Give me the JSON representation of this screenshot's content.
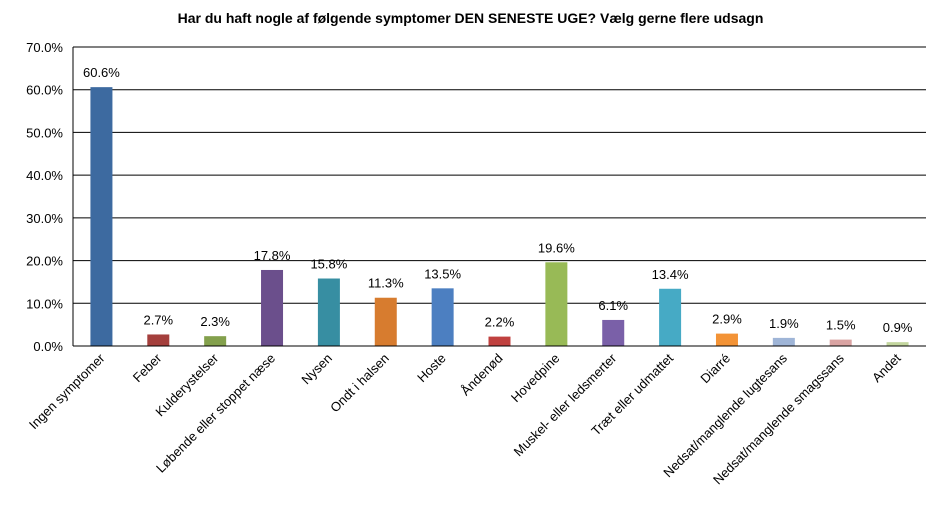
{
  "chart_data": {
    "type": "bar",
    "title": "Har du haft nogle af følgende symptomer DEN SENESTE UGE? Vælg gerne flere udsagn",
    "xlabel": "",
    "ylabel": "",
    "ylim": [
      0,
      70
    ],
    "yticks": [
      "0.0%",
      "10.0%",
      "20.0%",
      "30.0%",
      "40.0%",
      "50.0%",
      "60.0%",
      "70.0%"
    ],
    "grid": true,
    "categories": [
      "Ingen symptomer",
      "Feber",
      "Kulderystelser",
      "Løbende eller stoppet næse",
      "Nysen",
      "Ondt i halsen",
      "Hoste",
      "Åndenød",
      "Hovedpine",
      "Muskel- eller ledsmerter",
      "Træt eller udmattet",
      "Diarré",
      "Nedsat/manglende lugtesans",
      "Nedsat/manglende smagssans",
      "Andet"
    ],
    "values": [
      60.6,
      2.7,
      2.3,
      17.8,
      15.8,
      11.3,
      13.5,
      2.2,
      19.6,
      6.1,
      13.4,
      2.9,
      1.9,
      1.5,
      0.9
    ],
    "value_labels": [
      "60.6%",
      "2.7%",
      "2.3%",
      "17.8%",
      "15.8%",
      "11.3%",
      "13.5%",
      "2.2%",
      "19.6%",
      "6.1%",
      "13.4%",
      "2.9%",
      "1.9%",
      "1.5%",
      "0.9%"
    ],
    "colors": [
      "#3d6aa0",
      "#a43f3c",
      "#83a04c",
      "#6b4f8c",
      "#378ea2",
      "#d77c2f",
      "#4c7fc1",
      "#c0413f",
      "#98ba56",
      "#7a60a8",
      "#46aac5",
      "#f39336",
      "#9fb5d7",
      "#d9a3a2",
      "#c3d69e"
    ]
  }
}
